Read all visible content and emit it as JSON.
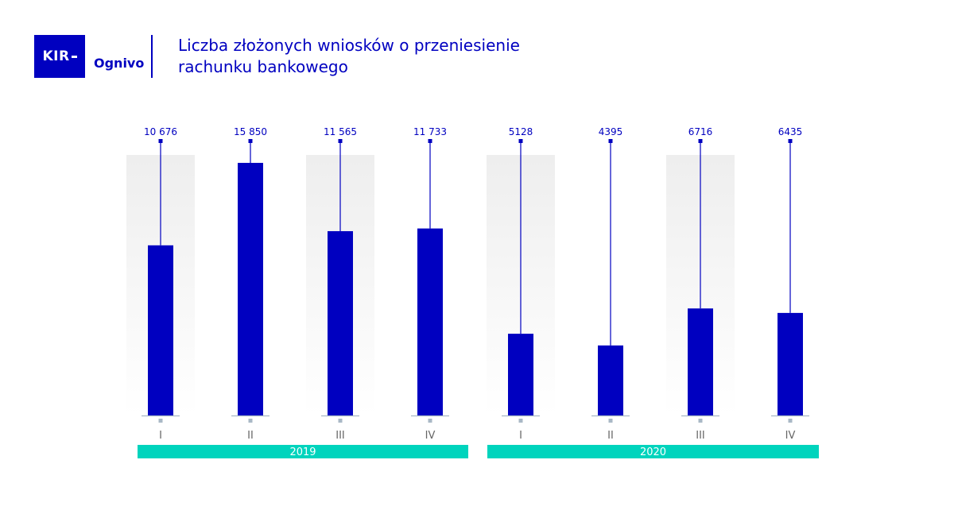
{
  "header": {
    "logo_text": "KIR",
    "brand": "Ognivo",
    "title_line1": "Liczba złożonych wniosków o przeniesienie",
    "title_line2": "rachunku bankowego"
  },
  "colors": {
    "bar": "#0000c0",
    "band_shade": "#f0f0f0",
    "year_band": "#00d4bd",
    "tick": "#a9b8c6"
  },
  "chart_data": {
    "type": "bar",
    "title": "Liczba złożonych wniosków o przeniesienie rachunku bankowego",
    "categories": [
      "I",
      "II",
      "III",
      "IV",
      "I",
      "II",
      "III",
      "IV"
    ],
    "value_labels": [
      "10 676",
      "15 850",
      "11 565",
      "11 733",
      "5128",
      "4395",
      "6716",
      "6435"
    ],
    "values": [
      10676,
      15850,
      11565,
      11733,
      5128,
      4395,
      6716,
      6435
    ],
    "groups": [
      {
        "label": "2019",
        "categories": [
          "I",
          "II",
          "III",
          "IV"
        ]
      },
      {
        "label": "2020",
        "categories": [
          "I",
          "II",
          "III",
          "IV"
        ]
      }
    ],
    "ylim": [
      0,
      15850
    ],
    "grid": false,
    "legend": "none"
  }
}
